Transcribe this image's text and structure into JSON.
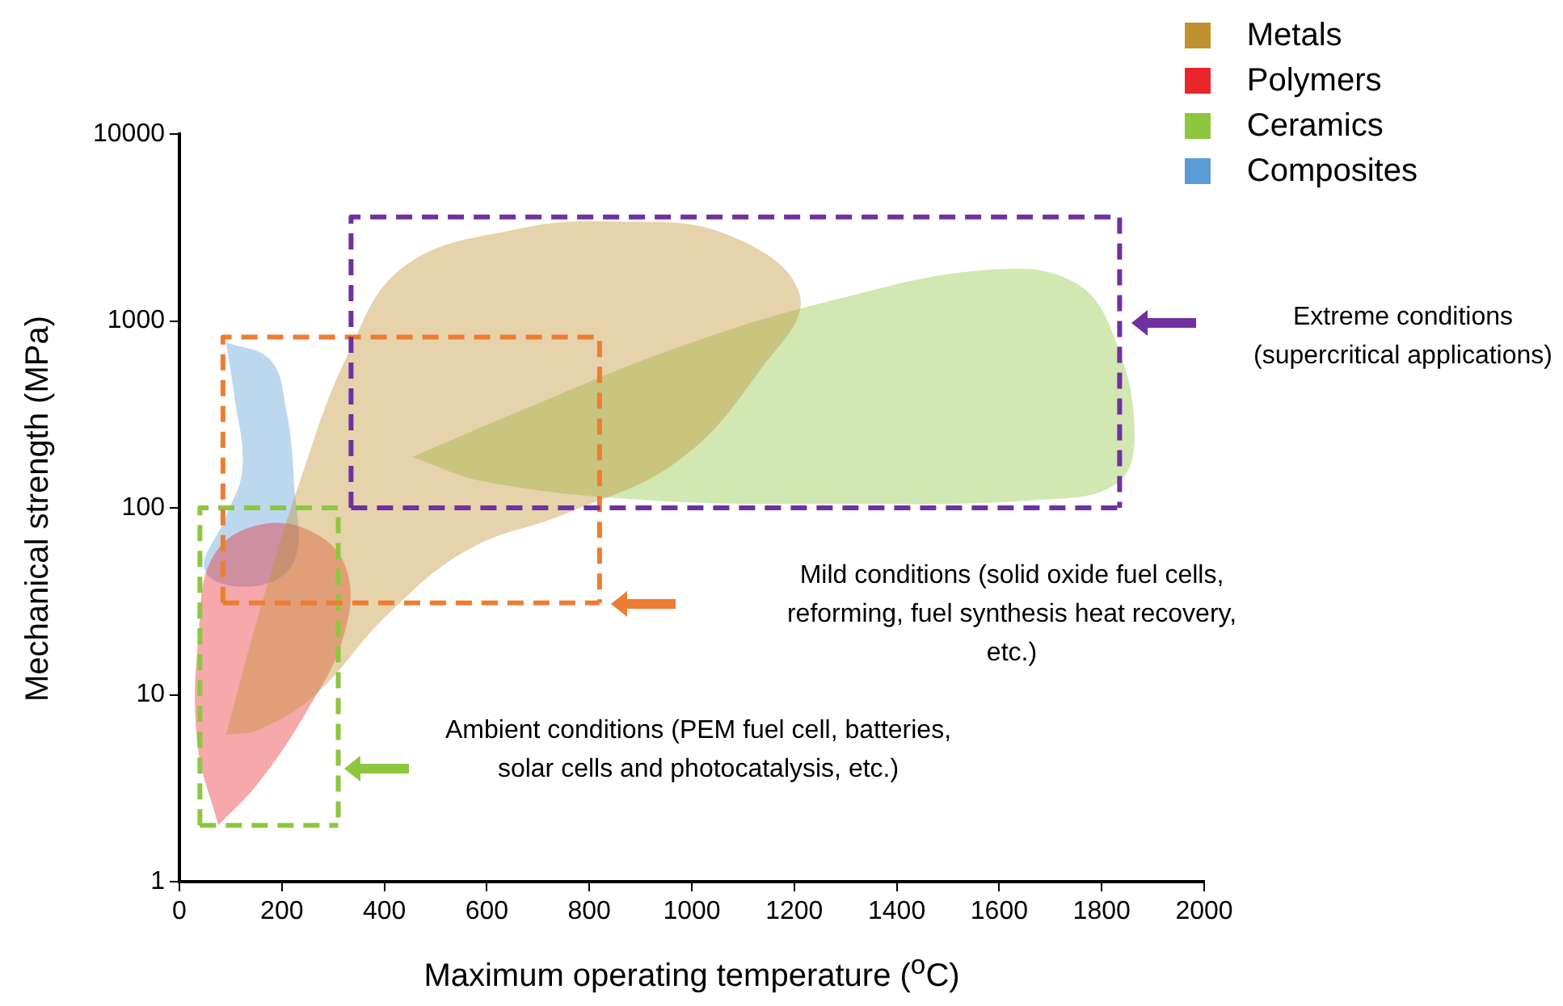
{
  "chart_data": {
    "type": "area",
    "xlabel": "Maximum operating temperature ($^{o}$C)",
    "ylabel": "Mechanical strength (MPa)",
    "xlim": [
      0,
      2000
    ],
    "xticks": [
      0,
      200,
      400,
      600,
      800,
      1000,
      1200,
      1400,
      1600,
      1800,
      2000
    ],
    "ylim": [
      1,
      10000
    ],
    "yticks": [
      1,
      10,
      100,
      1000,
      10000
    ],
    "log": "y",
    "grid": false,
    "legend": "top right",
    "series": [
      {
        "name": "Metals",
        "color": "#c0922f",
        "x": [
          91,
          155,
          233,
          328,
          438,
          659,
          849,
          1069,
          1211,
          1132,
          975,
          754,
          565,
          407,
          265,
          155,
          91
        ],
        "values": [
          6.1,
          27,
          133,
          655,
          1950,
          3100,
          3400,
          2900,
          1370,
          540,
          180,
          93,
          60,
          27,
          10,
          6.5,
          6.1
        ]
      },
      {
        "name": "Polymers",
        "color": "#e8262a",
        "x": [
          76,
          35,
          38,
          66,
          155,
          265,
          328,
          319,
          249,
          155,
          76
        ],
        "values": [
          2.0,
          5.5,
          22,
          55,
          81,
          73,
          45,
          20,
          8.2,
          3.4,
          2.0
        ]
      },
      {
        "name": "Ceramics",
        "color": "#8dc63f",
        "x": [
          454,
          659,
          975,
          1290,
          1584,
          1748,
          1826,
          1864,
          1826,
          1669,
          1290,
          912,
          596,
          454
        ],
        "values": [
          187,
          325,
          725,
          1320,
          1880,
          1600,
          800,
          240,
          133,
          110,
          105,
          110,
          138,
          187
        ]
      },
      {
        "name": "Composites",
        "color": "#5b9bd5",
        "x": [
          91,
          177,
          208,
          224,
          224,
          145,
          50,
          91,
          123,
          107,
          91
        ],
        "values": [
          770,
          620,
          340,
          133,
          52,
          38,
          46,
          90,
          163,
          400,
          770
        ]
      },
      {
        "type": "line",
        "color": "#7030a0",
        "line_style": "dashed",
        "x": [
          335,
          335,
          1835,
          1835
        ],
        "values": [
          100,
          3600,
          3600,
          100
        ]
      },
      {
        "type": "line",
        "color": "#7030a0",
        "line_style": "dashed",
        "x": [
          335,
          1835
        ],
        "values": [
          100,
          100
        ]
      },
      {
        "type": "line",
        "color": "#ed7d31",
        "line_style": "dashed",
        "x": [
          85,
          85,
          820,
          820
        ],
        "values": [
          31,
          820,
          820,
          31
        ]
      },
      {
        "type": "line",
        "color": "#ed7d31",
        "line_style": "dashed",
        "x": [
          85,
          820
        ],
        "values": [
          31,
          31
        ]
      },
      {
        "type": "line",
        "color": "#8dc63f",
        "line_style": "dashed",
        "x": [
          40,
          40,
          310,
          310
        ],
        "values": [
          2,
          100,
          100,
          2
        ]
      },
      {
        "type": "line",
        "color": "#8dc63f",
        "line_style": "dashed",
        "x": [
          40,
          310
        ],
        "values": [
          2,
          2
        ]
      }
    ],
    "annotations": [
      "Extreme conditions\n(supercritical applications)",
      "Mild conditions (solid oxide fuel cells,\nreforming, fuel synthesis heat recovery,\netc.)",
      "Ambient conditions (PEM fuel cell, batteries,\nsolar cells and photocatalysis, etc.)"
    ]
  }
}
